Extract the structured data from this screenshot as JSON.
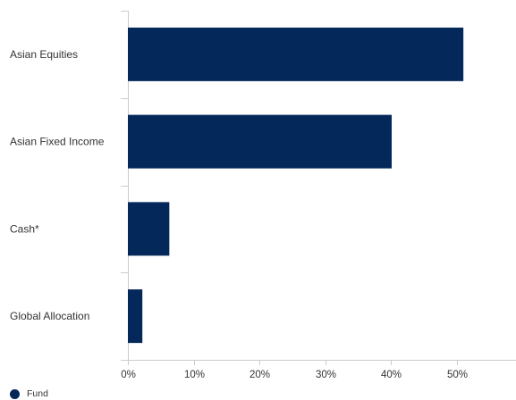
{
  "chart_data": {
    "type": "bar",
    "orientation": "horizontal",
    "categories": [
      "Asian Equities",
      "Asian Fixed Income",
      "Cash*",
      "Global Allocation"
    ],
    "series": [
      {
        "name": "Fund",
        "values": [
          51.0,
          40.1,
          6.3,
          2.2
        ],
        "color": "#05285a"
      }
    ],
    "xlim": [
      0,
      59
    ],
    "x_ticks": [
      0,
      10,
      20,
      30,
      40,
      50
    ],
    "x_tick_labels": [
      "0%",
      "10%",
      "20%",
      "30%",
      "40%",
      "50%"
    ],
    "grid": false,
    "legend": {
      "position": "bottom-left"
    }
  }
}
